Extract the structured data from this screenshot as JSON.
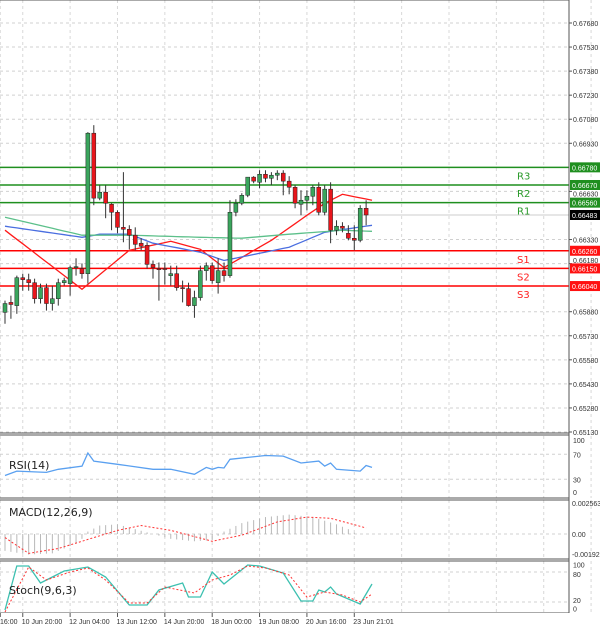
{
  "chart_data": {
    "type": "candlestick",
    "price_axis": {
      "ylim": [
        0.6513,
        0.6768
      ],
      "tick_labels": [
        "0.67680",
        "0.67530",
        "0.67380",
        "0.67230",
        "0.67080",
        "0.66930",
        "0.66630",
        "0.66330",
        "0.66180",
        "0.65880",
        "0.65730",
        "0.65580",
        "0.65430",
        "0.65280",
        "0.65130"
      ],
      "grid": true
    },
    "time_axis": {
      "tick_labels": [
        {
          "index": -0.8,
          "label": "16:00"
        },
        {
          "index": 3,
          "label": "10 Jun 20:00"
        },
        {
          "index": 11,
          "label": "12 Jun 04:00"
        },
        {
          "index": 19,
          "label": "13 Jun 12:00"
        },
        {
          "index": 27,
          "label": "14 Jun 20:00"
        },
        {
          "index": 35,
          "label": "18 Jun 00:00"
        },
        {
          "index": 43,
          "label": "19 Jun 08:00"
        },
        {
          "index": 51,
          "label": "20 Jun 16:00"
        },
        {
          "index": 59,
          "label": "23 Jun 21:01"
        }
      ]
    },
    "colors": {
      "up": "#3aa55d",
      "down": "#e8151b",
      "resistance": "#1f8f1f",
      "support": "#ff0000",
      "current": "#000000"
    },
    "candles_ohlc": [
      [
        0.65876,
        0.65949,
        0.65805,
        0.65931
      ],
      [
        0.65938,
        0.6598,
        0.65836,
        0.65925
      ],
      [
        0.65918,
        0.66105,
        0.65867,
        0.66092
      ],
      [
        0.66092,
        0.66117,
        0.66011,
        0.6608
      ],
      [
        0.6608,
        0.66117,
        0.66011,
        0.66061
      ],
      [
        0.66061,
        0.66086,
        0.65931,
        0.65961
      ],
      [
        0.65961,
        0.66055,
        0.65931,
        0.6603
      ],
      [
        0.6603,
        0.66055,
        0.65887,
        0.65931
      ],
      [
        0.65931,
        0.66043,
        0.65887,
        0.65961
      ],
      [
        0.65961,
        0.66086,
        0.65918,
        0.66061
      ],
      [
        0.66061,
        0.66092,
        0.66043,
        0.66074
      ],
      [
        0.66055,
        0.66167,
        0.6598,
        0.66155
      ],
      [
        0.66155,
        0.66213,
        0.66105,
        0.66161
      ],
      [
        0.66149,
        0.66181,
        0.66086,
        0.66117
      ],
      [
        0.66117,
        0.67,
        0.66055,
        0.66993
      ],
      [
        0.66993,
        0.67043,
        0.66544,
        0.66588
      ],
      [
        0.66588,
        0.66669,
        0.66575,
        0.66625
      ],
      [
        0.66625,
        0.66669,
        0.66463,
        0.66556
      ],
      [
        0.6655,
        0.66556,
        0.66388,
        0.665
      ],
      [
        0.665,
        0.66512,
        0.66369,
        0.66406
      ],
      [
        0.66406,
        0.6675,
        0.66313,
        0.66394
      ],
      [
        0.66394,
        0.66419,
        0.66269,
        0.66357
      ],
      [
        0.66357,
        0.66406,
        0.66263,
        0.663
      ],
      [
        0.66307,
        0.66338,
        0.66263,
        0.66288
      ],
      [
        0.66294,
        0.66313,
        0.66149,
        0.66175
      ],
      [
        0.66175,
        0.66199,
        0.66086,
        0.66155
      ],
      [
        0.66149,
        0.66187,
        0.65949,
        0.66142
      ],
      [
        0.66149,
        0.66187,
        0.66049,
        0.66146
      ],
      [
        0.66105,
        0.66167,
        0.66043,
        0.66117
      ],
      [
        0.66117,
        0.66167,
        0.66011,
        0.6603
      ],
      [
        0.6603,
        0.66074,
        0.65938,
        0.66024
      ],
      [
        0.66024,
        0.66061,
        0.65912,
        0.65918
      ],
      [
        0.65918,
        0.66011,
        0.65842,
        0.65968
      ],
      [
        0.65968,
        0.66167,
        0.65949,
        0.66136
      ],
      [
        0.66136,
        0.66187,
        0.66074,
        0.66167
      ],
      [
        0.66167,
        0.66187,
        0.66055,
        0.66074
      ],
      [
        0.66061,
        0.66213,
        0.65993,
        0.66136
      ],
      [
        0.66136,
        0.66187,
        0.66068,
        0.66105
      ],
      [
        0.66105,
        0.66575,
        0.66092,
        0.665
      ],
      [
        0.665,
        0.66581,
        0.66475,
        0.66556
      ],
      [
        0.66556,
        0.66619,
        0.66544,
        0.66606
      ],
      [
        0.66606,
        0.66719,
        0.66594,
        0.66719
      ],
      [
        0.66719,
        0.66725,
        0.66681,
        0.66694
      ],
      [
        0.66687,
        0.66762,
        0.6665,
        0.66737
      ],
      [
        0.66737,
        0.66762,
        0.66687,
        0.66712
      ],
      [
        0.66712,
        0.6675,
        0.66669,
        0.66731
      ],
      [
        0.66731,
        0.66762,
        0.667,
        0.66744
      ],
      [
        0.66744,
        0.66762,
        0.66606,
        0.66694
      ],
      [
        0.66694,
        0.66725,
        0.66612,
        0.66656
      ],
      [
        0.66656,
        0.66669,
        0.66525,
        0.66556
      ],
      [
        0.6655,
        0.66637,
        0.66481,
        0.66575
      ],
      [
        0.66575,
        0.66637,
        0.66512,
        0.666
      ],
      [
        0.666,
        0.66669,
        0.66544,
        0.66656
      ],
      [
        0.66656,
        0.66687,
        0.66481,
        0.665
      ],
      [
        0.665,
        0.66669,
        0.66481,
        0.66644
      ],
      [
        0.66644,
        0.66687,
        0.66307,
        0.66388
      ],
      [
        0.66388,
        0.6645,
        0.66357,
        0.66413
      ],
      [
        0.66413,
        0.66438,
        0.66375,
        0.664
      ],
      [
        0.66369,
        0.66419,
        0.66325,
        0.66338
      ],
      [
        0.66338,
        0.66419,
        0.66263,
        0.66325
      ],
      [
        0.66325,
        0.66544,
        0.66313,
        0.66525
      ],
      [
        0.66525,
        0.66575,
        0.66419,
        0.66483
      ]
    ],
    "moving_averages": [
      {
        "color": "#ff1a1a",
        "points": [
          [
            0,
            0.66388
          ],
          [
            13,
            0.6602
          ],
          [
            21,
            0.66263
          ],
          [
            28,
            0.66319
          ],
          [
            33,
            0.66269
          ],
          [
            37,
            0.66155
          ],
          [
            45,
            0.66325
          ],
          [
            51,
            0.66481
          ],
          [
            54,
            0.66556
          ],
          [
            57,
            0.66612
          ],
          [
            62,
            0.66575
          ]
        ]
      },
      {
        "color": "#4a6ee0",
        "points": [
          [
            0,
            0.66413
          ],
          [
            13,
            0.66344
          ],
          [
            16,
            0.66363
          ],
          [
            21,
            0.66363
          ],
          [
            25,
            0.66307
          ],
          [
            33,
            0.66251
          ],
          [
            37,
            0.66199
          ],
          [
            48,
            0.66282
          ],
          [
            54,
            0.66375
          ],
          [
            62,
            0.66419
          ]
        ]
      },
      {
        "color": "#5cc08a",
        "points": [
          [
            0,
            0.66469
          ],
          [
            13,
            0.66357
          ],
          [
            21,
            0.66357
          ],
          [
            33,
            0.66344
          ],
          [
            40,
            0.66338
          ],
          [
            48,
            0.66363
          ],
          [
            57,
            0.66388
          ],
          [
            62,
            0.66381
          ]
        ]
      }
    ],
    "levels": [
      {
        "name": "R3",
        "price": "0.66780",
        "type": "resistance"
      },
      {
        "name": "R2",
        "price": "0.66670",
        "type": "resistance"
      },
      {
        "name": "R1",
        "price": "0.66560",
        "type": "resistance"
      },
      {
        "name": "S1",
        "price": "0.66260",
        "type": "support"
      },
      {
        "name": "S2",
        "price": "0.66150",
        "type": "support"
      },
      {
        "name": "S3",
        "price": "0.66040",
        "type": "support"
      }
    ],
    "current_price": "0.66483",
    "indicators": {
      "rsi": {
        "label": "RSI(14)",
        "tick_labels": [
          "100",
          "70",
          "30",
          "0"
        ],
        "color": "#5aa0f0",
        "points": [
          [
            0,
            36
          ],
          [
            2,
            43
          ],
          [
            7,
            41
          ],
          [
            9,
            46
          ],
          [
            13,
            51
          ],
          [
            14,
            72
          ],
          [
            15,
            59
          ],
          [
            19,
            54
          ],
          [
            25,
            46
          ],
          [
            28,
            46
          ],
          [
            32,
            38
          ],
          [
            34,
            49
          ],
          [
            35,
            46
          ],
          [
            36,
            49
          ],
          [
            37,
            48
          ],
          [
            38,
            62
          ],
          [
            44,
            68
          ],
          [
            47,
            67
          ],
          [
            50,
            56
          ],
          [
            53,
            59
          ],
          [
            54,
            51
          ],
          [
            55,
            56
          ],
          [
            56,
            46
          ],
          [
            60,
            43
          ],
          [
            61,
            52
          ],
          [
            62,
            49
          ]
        ]
      },
      "macd": {
        "label": "MACD(12,26,9)",
        "tick_labels": [
          "0.002563",
          "0.00",
          "-0.001922"
        ],
        "ylim": [
          -0.001922,
          0.002563
        ],
        "histogram_points": [
          [
            0,
            -0.0014
          ],
          [
            4,
            -0.0017
          ],
          [
            8,
            -0.0016
          ],
          [
            12,
            -0.0008
          ],
          [
            13,
            -0.0004
          ],
          [
            14,
            0.0002
          ],
          [
            16,
            0.0007
          ],
          [
            19,
            0.0008
          ],
          [
            22,
            0.0004
          ],
          [
            25,
            0.0
          ],
          [
            28,
            -0.0004
          ],
          [
            32,
            -0.0006
          ],
          [
            35,
            -0.0005
          ],
          [
            37,
            0.0002
          ],
          [
            40,
            0.0009
          ],
          [
            44,
            0.0014
          ],
          [
            48,
            0.0016
          ],
          [
            52,
            0.0014
          ],
          [
            56,
            0.0008
          ],
          [
            58,
            0.0004
          ],
          [
            59,
            0.0001
          ]
        ],
        "signal_points": [
          [
            0,
            -0.0003
          ],
          [
            4,
            -0.0016
          ],
          [
            9,
            -0.0012
          ],
          [
            19,
            0.0003
          ],
          [
            23,
            0.0007
          ],
          [
            28,
            0.0003
          ],
          [
            35,
            -0.0006
          ],
          [
            40,
            -0.0001
          ],
          [
            46,
            0.001
          ],
          [
            51,
            0.0014
          ],
          [
            55,
            0.0013
          ],
          [
            61,
            0.0005
          ]
        ],
        "signal_color": "#ff3333"
      },
      "stoch": {
        "label": "Stoch(9,6,3)",
        "tick_labels": [
          "100",
          "80",
          "20",
          "0"
        ],
        "main_color": "#3cc0b0",
        "signal_color": "#ff3333",
        "main_points": [
          [
            0,
            4
          ],
          [
            2,
            92
          ],
          [
            4,
            92
          ],
          [
            6,
            58
          ],
          [
            10,
            82
          ],
          [
            14,
            90
          ],
          [
            17,
            70
          ],
          [
            21,
            14
          ],
          [
            24,
            14
          ],
          [
            26,
            44
          ],
          [
            30,
            58
          ],
          [
            31,
            30
          ],
          [
            33,
            30
          ],
          [
            35,
            80
          ],
          [
            37,
            56
          ],
          [
            41,
            94
          ],
          [
            43,
            92
          ],
          [
            47,
            78
          ],
          [
            50,
            22
          ],
          [
            52,
            22
          ],
          [
            53,
            44
          ],
          [
            54,
            40
          ],
          [
            55,
            50
          ],
          [
            56,
            36
          ],
          [
            60,
            16
          ],
          [
            62,
            56
          ]
        ],
        "signal_points": [
          [
            0,
            0
          ],
          [
            4,
            90
          ],
          [
            7,
            64
          ],
          [
            11,
            80
          ],
          [
            14,
            88
          ],
          [
            17,
            64
          ],
          [
            21,
            18
          ],
          [
            24,
            18
          ],
          [
            27,
            50
          ],
          [
            32,
            38
          ],
          [
            35,
            64
          ],
          [
            38,
            74
          ],
          [
            41,
            92
          ],
          [
            44,
            88
          ],
          [
            48,
            74
          ],
          [
            51,
            30
          ],
          [
            54,
            40
          ],
          [
            57,
            34
          ],
          [
            60,
            20
          ],
          [
            62,
            36
          ]
        ]
      }
    }
  }
}
